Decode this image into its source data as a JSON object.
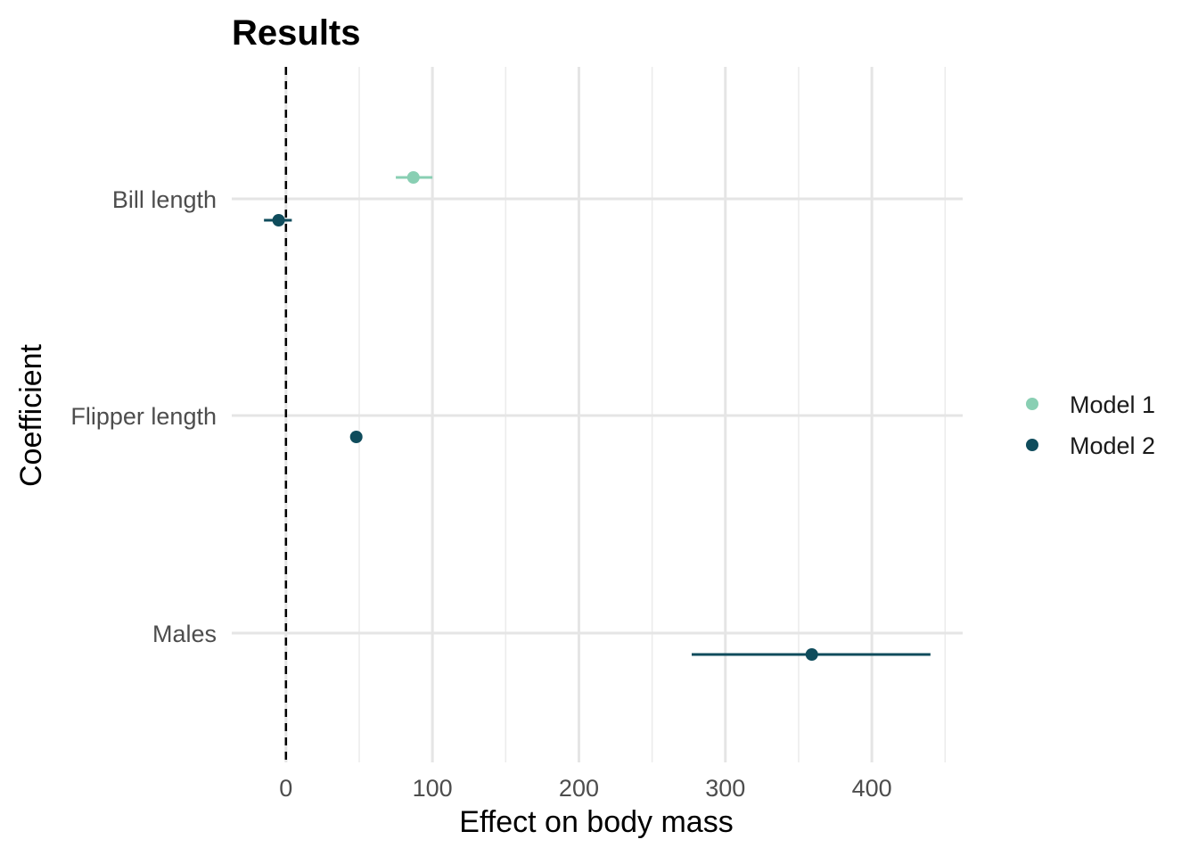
{
  "chart_data": {
    "type": "scatter",
    "subtype": "coefficient-plot",
    "title": "Results",
    "xlabel": "Effect on body mass",
    "ylabel": "Coefficient",
    "xlim": [
      -37,
      462
    ],
    "xticks": [
      0,
      100,
      200,
      300,
      400
    ],
    "categories": [
      "Bill length",
      "Flipper length",
      "Males"
    ],
    "reference_line": {
      "x": 0,
      "style": "dashed",
      "color": "#000000"
    },
    "grid": true,
    "legend_position": "right",
    "series": [
      {
        "name": "Model 1",
        "color": "#89CFB3",
        "points": [
          {
            "category": "Bill length",
            "estimate": 87,
            "low": 75,
            "high": 100
          }
        ]
      },
      {
        "name": "Model 2",
        "color": "#0F4C5C",
        "points": [
          {
            "category": "Bill length",
            "estimate": -5,
            "low": -15,
            "high": 4
          },
          {
            "category": "Flipper length",
            "estimate": 48,
            "low": 45,
            "high": 51
          },
          {
            "category": "Males",
            "estimate": 359,
            "low": 277,
            "high": 440
          }
        ]
      }
    ]
  }
}
